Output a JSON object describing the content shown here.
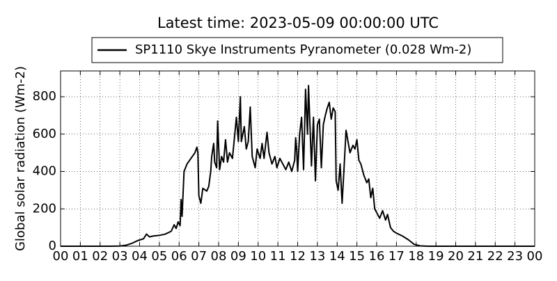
{
  "chart_data": {
    "type": "line",
    "title": "Latest time: 2023-05-09 00:00:00 UTC",
    "y_label": "Global solar radiation (Wm-2)",
    "x": [
      0,
      2.5,
      3,
      3.3,
      3.6,
      3.9,
      4.2,
      4.35,
      4.5,
      4.7,
      5.0,
      5.3,
      5.6,
      5.75,
      5.85,
      5.95,
      6.05,
      6.1,
      6.15,
      6.25,
      6.4,
      6.6,
      6.8,
      6.9,
      6.95,
      7.0,
      7.1,
      7.2,
      7.4,
      7.5,
      7.6,
      7.65,
      7.75,
      7.8,
      7.9,
      7.95,
      8.05,
      8.15,
      8.25,
      8.35,
      8.45,
      8.55,
      8.7,
      8.9,
      9.0,
      9.1,
      9.15,
      9.3,
      9.4,
      9.5,
      9.6,
      9.7,
      9.85,
      9.95,
      10.1,
      10.2,
      10.3,
      10.45,
      10.55,
      10.7,
      10.85,
      10.95,
      11.1,
      11.25,
      11.4,
      11.55,
      11.7,
      11.85,
      11.9,
      11.95,
      12.0,
      12.1,
      12.2,
      12.3,
      12.4,
      12.5,
      12.55,
      12.7,
      12.8,
      12.9,
      13.0,
      13.1,
      13.2,
      13.3,
      13.4,
      13.5,
      13.6,
      13.7,
      13.8,
      13.9,
      13.95,
      14.05,
      14.15,
      14.25,
      14.35,
      14.45,
      14.55,
      14.65,
      14.8,
      14.9,
      15.0,
      15.1,
      15.2,
      15.35,
      15.5,
      15.6,
      15.7,
      15.8,
      15.9,
      16.0,
      16.15,
      16.3,
      16.45,
      16.55,
      16.7,
      16.85,
      17.0,
      17.3,
      17.6,
      17.9,
      18.2,
      18.6,
      24
    ],
    "series": [
      {
        "name": "SP1110 Skye Instruments Pyranometer (0.028 Wm-2)",
        "color": "#000000",
        "values": [
          0,
          0,
          1,
          5,
          15,
          30,
          40,
          65,
          50,
          55,
          58,
          65,
          80,
          115,
          95,
          130,
          110,
          250,
          160,
          400,
          440,
          470,
          500,
          530,
          500,
          270,
          230,
          310,
          295,
          320,
          400,
          480,
          550,
          450,
          420,
          670,
          410,
          480,
          450,
          570,
          450,
          500,
          470,
          690,
          560,
          800,
          560,
          640,
          520,
          560,
          745,
          480,
          420,
          520,
          470,
          550,
          470,
          610,
          500,
          440,
          480,
          420,
          470,
          440,
          410,
          450,
          400,
          460,
          580,
          520,
          400,
          600,
          690,
          410,
          840,
          600,
          860,
          430,
          690,
          350,
          650,
          680,
          420,
          650,
          700,
          740,
          770,
          680,
          740,
          720,
          350,
          300,
          440,
          230,
          420,
          620,
          560,
          500,
          540,
          520,
          570,
          460,
          440,
          380,
          340,
          360,
          260,
          310,
          200,
          180,
          150,
          190,
          140,
          170,
          100,
          80,
          70,
          55,
          35,
          10,
          2,
          0,
          0
        ]
      }
    ],
    "xlim": [
      0,
      24
    ],
    "xticks": [
      {
        "value": 0,
        "label": "00"
      },
      {
        "value": 1,
        "label": "01"
      },
      {
        "value": 2,
        "label": "02"
      },
      {
        "value": 3,
        "label": "03"
      },
      {
        "value": 4,
        "label": "04"
      },
      {
        "value": 5,
        "label": "05"
      },
      {
        "value": 6,
        "label": "06"
      },
      {
        "value": 7,
        "label": "07"
      },
      {
        "value": 8,
        "label": "08"
      },
      {
        "value": 9,
        "label": "09"
      },
      {
        "value": 10,
        "label": "10"
      },
      {
        "value": 11,
        "label": "11"
      },
      {
        "value": 12,
        "label": "12"
      },
      {
        "value": 13,
        "label": "13"
      },
      {
        "value": 14,
        "label": "14"
      },
      {
        "value": 15,
        "label": "15"
      },
      {
        "value": 16,
        "label": "16"
      },
      {
        "value": 17,
        "label": "17"
      },
      {
        "value": 18,
        "label": "18"
      },
      {
        "value": 19,
        "label": "19"
      },
      {
        "value": 20,
        "label": "20"
      },
      {
        "value": 21,
        "label": "21"
      },
      {
        "value": 22,
        "label": "22"
      },
      {
        "value": 23,
        "label": "23"
      },
      {
        "value": 24,
        "label": "00"
      }
    ],
    "ylim": [
      0,
      938
    ],
    "yticks": [
      0,
      200,
      400,
      600,
      800
    ],
    "grid": true,
    "legend": "top"
  }
}
